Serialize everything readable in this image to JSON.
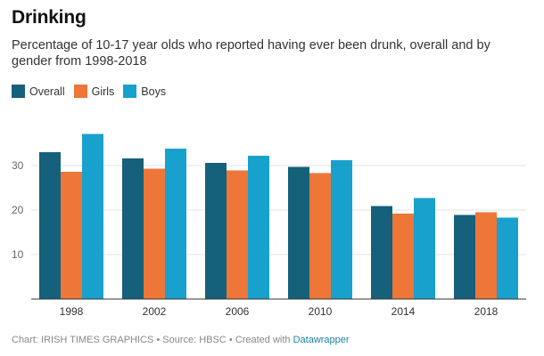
{
  "chart_data": {
    "type": "bar",
    "title": "Drinking",
    "subtitle": "Percentage of 10-17 year olds who reported having ever been drunk, overall and by gender from 1998-2018",
    "categories": [
      "1998",
      "2002",
      "2006",
      "2010",
      "2014",
      "2018"
    ],
    "series": [
      {
        "name": "Overall",
        "color": "#15607a",
        "values": [
          33.0,
          31.6,
          30.6,
          29.7,
          20.9,
          18.9
        ]
      },
      {
        "name": "Girls",
        "color": "#ed7638",
        "values": [
          28.6,
          29.3,
          28.9,
          28.3,
          19.2,
          19.5
        ]
      },
      {
        "name": "Boys",
        "color": "#18a1cd",
        "values": [
          37.1,
          33.8,
          32.2,
          31.2,
          22.7,
          18.3
        ]
      }
    ],
    "y_ticks": [
      "10",
      "20",
      "30"
    ],
    "ylim": [
      0,
      40
    ],
    "grid": true,
    "legend_position": "top-left"
  },
  "footer": {
    "text": "Chart: IRISH TIMES GRAPHICS • Source: HBSC • Created with ",
    "link": "Datawrapper"
  }
}
